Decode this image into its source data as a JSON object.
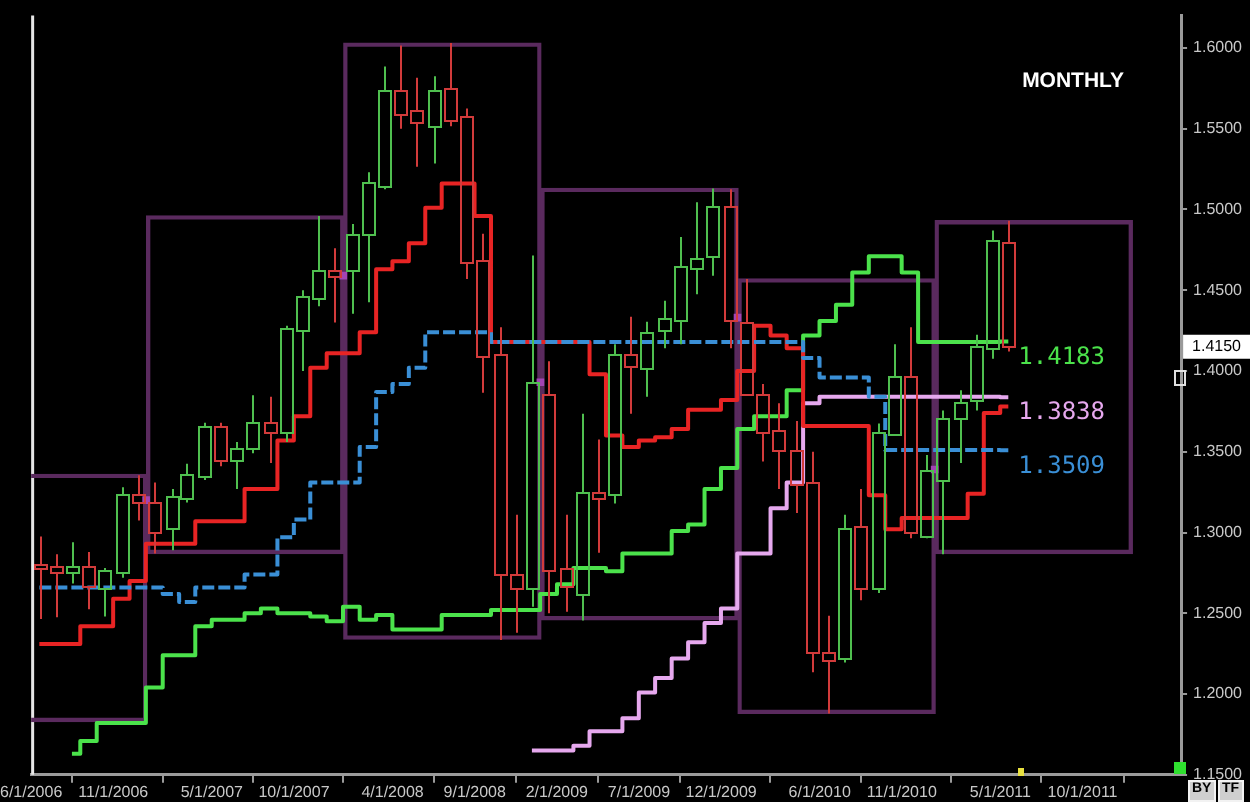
{
  "chart_data": {
    "type": "candlestick",
    "title": "MONTHLY",
    "x": [
      "2006-06-16",
      "2006-07-16",
      "2006-08-16",
      "2006-09-16",
      "2006-10-16",
      "2006-11-16",
      "2006-12-16",
      "2007-01-16",
      "2007-02-16",
      "2007-03-16",
      "2007-04-16",
      "2007-05-16",
      "2007-06-16",
      "2007-07-16",
      "2007-08-16",
      "2007-09-16",
      "2007-10-16",
      "2007-11-16",
      "2007-12-16",
      "2008-01-16",
      "2008-02-16",
      "2008-03-16",
      "2008-04-16",
      "2008-05-16",
      "2008-06-16",
      "2008-07-16",
      "2008-08-16",
      "2008-09-16",
      "2008-10-16",
      "2008-11-16",
      "2008-12-16",
      "2009-01-16",
      "2009-02-16",
      "2009-03-16",
      "2009-04-16",
      "2009-05-16",
      "2009-06-16",
      "2009-07-16",
      "2009-08-16",
      "2009-09-16",
      "2009-10-16",
      "2009-11-16",
      "2009-12-16",
      "2010-01-16",
      "2010-02-16",
      "2010-03-16",
      "2010-04-16",
      "2010-05-16",
      "2010-06-16",
      "2010-07-16",
      "2010-08-16",
      "2010-09-16",
      "2010-10-16",
      "2010-11-16",
      "2010-12-16",
      "2011-01-16",
      "2011-02-16",
      "2011-03-16",
      "2011-04-16",
      "2011-05-16"
    ],
    "series": [
      {
        "ohlc": [
          [
            1.28,
            1.2975,
            1.2465,
            1.278
          ],
          [
            1.279,
            1.2865,
            1.2475,
            1.2755
          ],
          [
            1.276,
            1.294,
            1.2685,
            1.2795
          ],
          [
            1.2795,
            1.288,
            1.2525,
            1.2665
          ],
          [
            1.2655,
            1.278,
            1.248,
            1.2765
          ],
          [
            1.2755,
            1.328,
            1.272,
            1.324
          ],
          [
            1.324,
            1.3355,
            1.3075,
            1.3195
          ],
          [
            1.3195,
            1.331,
            1.287,
            1.301
          ],
          [
            1.3025,
            1.327,
            1.289,
            1.322
          ],
          [
            1.322,
            1.3425,
            1.3185,
            1.3365
          ],
          [
            1.335,
            1.368,
            1.3325,
            1.3655
          ],
          [
            1.3655,
            1.368,
            1.341,
            1.344
          ],
          [
            1.345,
            1.356,
            1.327,
            1.352
          ],
          [
            1.352,
            1.385,
            1.349,
            1.368
          ],
          [
            1.368,
            1.384,
            1.343,
            1.362
          ],
          [
            1.362,
            1.428,
            1.356,
            1.4265
          ],
          [
            1.4245,
            1.45,
            1.4,
            1.446
          ],
          [
            1.446,
            1.496,
            1.44,
            1.463
          ],
          [
            1.462,
            1.476,
            1.43,
            1.458
          ],
          [
            1.463,
            1.491,
            1.4355,
            1.485
          ],
          [
            1.4845,
            1.523,
            1.4425,
            1.517
          ],
          [
            1.515,
            1.5885,
            1.5125,
            1.5745
          ],
          [
            1.5745,
            1.6015,
            1.55,
            1.5595
          ],
          [
            1.561,
            1.5815,
            1.5265,
            1.554
          ],
          [
            1.552,
            1.5825,
            1.5285,
            1.5745
          ],
          [
            1.5755,
            1.603,
            1.5515,
            1.556
          ],
          [
            1.558,
            1.5625,
            1.457,
            1.467
          ],
          [
            1.469,
            1.485,
            1.3865,
            1.41
          ],
          [
            1.4105,
            1.427,
            1.2335,
            1.2745
          ],
          [
            1.2745,
            1.311,
            1.238,
            1.2655
          ],
          [
            1.2655,
            1.4715,
            1.254,
            1.3935
          ],
          [
            1.386,
            1.406,
            1.25,
            1.2775
          ],
          [
            1.2775,
            1.311,
            1.251,
            1.266
          ],
          [
            1.262,
            1.3735,
            1.2455,
            1.325
          ],
          [
            1.3255,
            1.3575,
            1.2875,
            1.322
          ],
          [
            1.323,
            1.4165,
            1.318,
            1.41
          ],
          [
            1.41,
            1.4335,
            1.3735,
            1.402
          ],
          [
            1.402,
            1.4305,
            1.384,
            1.4245
          ],
          [
            1.425,
            1.4435,
            1.414,
            1.4325
          ],
          [
            1.4315,
            1.483,
            1.4165,
            1.465
          ],
          [
            1.4635,
            1.5045,
            1.4475,
            1.47
          ],
          [
            1.471,
            1.513,
            1.459,
            1.502
          ],
          [
            1.502,
            1.5125,
            1.414,
            1.4315
          ],
          [
            1.4305,
            1.457,
            1.3855,
            1.386
          ],
          [
            1.386,
            1.392,
            1.344,
            1.3625
          ],
          [
            1.3635,
            1.38,
            1.327,
            1.3515
          ],
          [
            1.3515,
            1.369,
            1.312,
            1.331
          ],
          [
            1.3315,
            1.35,
            1.2135,
            1.2265
          ],
          [
            1.2265,
            1.2485,
            1.188,
            1.2215
          ],
          [
            1.2215,
            1.311,
            1.2195,
            1.3025
          ],
          [
            1.304,
            1.327,
            1.258,
            1.266
          ],
          [
            1.266,
            1.3675,
            1.2625,
            1.3625
          ],
          [
            1.3615,
            1.4165,
            1.36,
            1.397
          ],
          [
            1.397,
            1.427,
            1.2965,
            1.3005
          ],
          [
            1.298,
            1.348,
            1.2965,
            1.339
          ],
          [
            1.333,
            1.3755,
            1.2865,
            1.3715
          ],
          [
            1.3705,
            1.388,
            1.343,
            1.381
          ],
          [
            1.382,
            1.4225,
            1.3755,
            1.415
          ],
          [
            1.414,
            1.487,
            1.4075,
            1.4805
          ],
          [
            1.48,
            1.493,
            1.412,
            1.415
          ]
        ],
        "colors": [
          "#d23b3b",
          "#d23b3b",
          "#4fbf4f",
          "#d23b3b",
          "#4fbf4f",
          "#4fbf4f",
          "#d23b3b",
          "#d23b3b",
          "#4fbf4f",
          "#4fbf4f",
          "#4fbf4f",
          "#d23b3b",
          "#4fbf4f",
          "#4fbf4f",
          "#d23b3b",
          "#4fbf4f",
          "#4fbf4f",
          "#4fbf4f",
          "#d23b3b",
          "#4fbf4f",
          "#4fbf4f",
          "#4fbf4f",
          "#d23b3b",
          "#d23b3b",
          "#4fbf4f",
          "#d23b3b",
          "#d23b3b",
          "#d23b3b",
          "#d23b3b",
          "#d23b3b",
          "#4fbf4f",
          "#d23b3b",
          "#d23b3b",
          "#4fbf4f",
          "#d23b3b",
          "#4fbf4f",
          "#d23b3b",
          "#4fbf4f",
          "#4fbf4f",
          "#4fbf4f",
          "#4fbf4f",
          "#4fbf4f",
          "#d23b3b",
          "#d23b3b",
          "#d23b3b",
          "#d23b3b",
          "#d23b3b",
          "#d23b3b",
          "#d23b3b",
          "#4fbf4f",
          "#d23b3b",
          "#4fbf4f",
          "#4fbf4f",
          "#d23b3b",
          "#4fbf4f",
          "#4fbf4f",
          "#4fbf4f",
          "#4fbf4f",
          "#4fbf4f",
          "#d23b3b"
        ]
      },
      {
        "type": "step",
        "color": "#3a8fd6",
        "line_style": "dashed",
        "values": [
          1.266,
          1.266,
          1.266,
          1.266,
          1.266,
          1.266,
          1.266,
          1.266,
          1.262,
          1.257,
          1.266,
          1.266,
          1.266,
          1.274,
          1.274,
          1.297,
          1.308,
          1.331,
          1.331,
          1.331,
          1.353,
          1.387,
          1.392,
          1.402,
          1.424,
          1.424,
          1.424,
          1.424,
          1.418,
          1.418,
          1.418,
          1.418,
          1.418,
          1.418,
          1.418,
          1.418,
          1.418,
          1.418,
          1.418,
          1.418,
          1.418,
          1.418,
          1.418,
          1.418,
          1.418,
          1.418,
          1.418,
          1.408,
          1.396,
          1.396,
          1.396,
          1.384,
          1.351,
          1.351,
          1.351,
          1.351,
          1.351,
          1.351,
          1.351,
          1.3509
        ],
        "value_labels": [
          null,
          null,
          null,
          null,
          null,
          null,
          null,
          null,
          null,
          null,
          null,
          null,
          null,
          null,
          null,
          null,
          null,
          null,
          null,
          null,
          null,
          null,
          null,
          null,
          null,
          null,
          null,
          null,
          null,
          null,
          null,
          null,
          null,
          null,
          null,
          null,
          null,
          null,
          null,
          null,
          null,
          null,
          null,
          null,
          null,
          null,
          null,
          null,
          null,
          null,
          null,
          null,
          null,
          null,
          null,
          null,
          null,
          null,
          null,
          "1.3509"
        ]
      },
      {
        "type": "step",
        "color": "#e82424",
        "values": [
          1.231,
          1.231,
          1.231,
          1.242,
          1.242,
          1.259,
          1.27,
          1.293,
          1.293,
          1.293,
          1.307,
          1.307,
          1.307,
          1.327,
          1.327,
          1.357,
          1.372,
          1.402,
          1.411,
          1.411,
          1.424,
          1.463,
          1.468,
          1.479,
          1.501,
          1.516,
          1.516,
          1.496,
          1.418,
          1.418,
          1.418,
          1.418,
          1.418,
          1.418,
          1.398,
          1.36,
          1.353,
          1.357,
          1.359,
          1.364,
          1.376,
          1.376,
          1.382,
          1.4,
          1.428,
          1.422,
          1.414,
          1.366,
          1.366,
          1.366,
          1.366,
          1.323,
          1.302,
          1.309,
          1.309,
          1.309,
          1.309,
          1.324,
          1.374,
          1.378
        ]
      },
      {
        "type": "step",
        "color": "#4be24b",
        "values": [
          null,
          null,
          1.163,
          1.171,
          1.182,
          1.182,
          1.182,
          1.204,
          1.224,
          1.224,
          1.242,
          1.246,
          1.246,
          1.25,
          1.253,
          1.25,
          1.25,
          1.248,
          1.245,
          1.254,
          1.246,
          1.249,
          1.24,
          1.24,
          1.24,
          1.249,
          1.249,
          1.249,
          1.252,
          1.252,
          1.252,
          1.262,
          1.268,
          1.278,
          1.278,
          1.276,
          1.287,
          1.287,
          1.287,
          1.301,
          1.305,
          1.327,
          1.34,
          1.364,
          1.372,
          1.372,
          1.388,
          1.422,
          1.431,
          1.441,
          1.461,
          1.471,
          1.471,
          1.461,
          1.418,
          1.418,
          1.418,
          1.418,
          1.418,
          1.4183
        ],
        "value_labels": [
          null,
          null,
          null,
          null,
          null,
          null,
          null,
          null,
          null,
          null,
          null,
          null,
          null,
          null,
          null,
          null,
          null,
          null,
          null,
          null,
          null,
          null,
          null,
          null,
          null,
          null,
          null,
          null,
          null,
          null,
          null,
          null,
          null,
          null,
          null,
          null,
          null,
          null,
          null,
          null,
          null,
          null,
          null,
          null,
          null,
          null,
          null,
          null,
          null,
          null,
          null,
          null,
          null,
          null,
          null,
          null,
          null,
          null,
          null,
          "1.4183"
        ]
      },
      {
        "type": "step",
        "color": "#e6a8ee",
        "values": [
          null,
          null,
          null,
          null,
          null,
          null,
          null,
          null,
          null,
          null,
          null,
          null,
          null,
          null,
          null,
          null,
          null,
          null,
          null,
          null,
          null,
          null,
          null,
          null,
          null,
          null,
          null,
          null,
          null,
          null,
          1.165,
          1.165,
          1.165,
          1.168,
          1.177,
          1.177,
          1.185,
          1.201,
          1.21,
          1.222,
          1.232,
          1.244,
          1.253,
          1.287,
          1.287,
          1.315,
          1.331,
          1.38,
          1.384,
          1.384,
          1.384,
          1.384,
          1.384,
          1.384,
          1.384,
          1.384,
          1.384,
          1.384,
          1.384,
          1.3838
        ],
        "value_labels": [
          null,
          null,
          null,
          null,
          null,
          null,
          null,
          null,
          null,
          null,
          null,
          null,
          null,
          null,
          null,
          null,
          null,
          null,
          null,
          null,
          null,
          null,
          null,
          null,
          null,
          null,
          null,
          null,
          null,
          null,
          null,
          null,
          null,
          null,
          null,
          null,
          null,
          null,
          null,
          null,
          null,
          null,
          null,
          null,
          null,
          null,
          null,
          null,
          null,
          null,
          null,
          null,
          null,
          null,
          null,
          null,
          null,
          null,
          null,
          "1.3838"
        ]
      },
      {
        "type": "scatter",
        "x": [
          "2007-01-01",
          "2008-01-01",
          "2009-01-01",
          "2010-01-01",
          "2011-01-01"
        ],
        "values": [
          1.32,
          1.459,
          1.393,
          1.433,
          1.339
        ],
        "color": "#a244b4",
        "marker": "square"
      },
      {
        "type": "bar",
        "x": [
          "2006-07-02",
          "2007-07-02",
          "2008-07-02",
          "2009-07-02",
          "2010-07-02",
          "2011-07-02"
        ],
        "base": [
          1.183,
          1.287,
          1.234,
          1.246,
          1.188,
          1.287
        ],
        "values": [
          0.153,
          0.209,
          0.369,
          0.267,
          0.269,
          0.206
        ],
        "color": "#5a2a5e"
      }
    ],
    "xlim": [
      "2006-06-01",
      "2012-04-01"
    ],
    "xticks": [
      {
        "value": "2006-06-01",
        "label": "6/1/2006"
      },
      {
        "value": "2006-11-01",
        "label": "11/1/2006"
      },
      {
        "value": "2007-05-01",
        "label": "5/1/2007"
      },
      {
        "value": "2007-10-01",
        "label": "10/1/2007"
      },
      {
        "value": "2008-04-01",
        "label": "4/1/2008"
      },
      {
        "value": "2008-09-01",
        "label": "9/1/2008"
      },
      {
        "value": "2009-02-01",
        "label": "2/1/2009"
      },
      {
        "value": "2009-07-01",
        "label": "7/1/2009"
      },
      {
        "value": "2009-12-01",
        "label": "12/1/2009"
      },
      {
        "value": "2010-06-01",
        "label": "6/1/2010"
      },
      {
        "value": "2010-11-01",
        "label": "11/1/2010"
      },
      {
        "value": "2011-05-01",
        "label": "5/1/2011"
      },
      {
        "value": "2011-10-01",
        "label": "10/1/2011"
      }
    ],
    "ylim": [
      1.15,
      1.62
    ],
    "yticks": [
      {
        "value": 1.15,
        "label": "1.1500"
      },
      {
        "value": 1.2,
        "label": "1.2000"
      },
      {
        "value": 1.25,
        "label": "1.2500"
      },
      {
        "value": 1.3,
        "label": "1.3000"
      },
      {
        "value": 1.35,
        "label": "1.3500"
      },
      {
        "value": 1.4,
        "label": "1.4000"
      },
      {
        "value": 1.45,
        "label": "1.4500"
      },
      {
        "value": 1.5,
        "label": "1.5000"
      },
      {
        "value": 1.55,
        "label": "1.5500"
      },
      {
        "value": 1.6,
        "label": "1.6000"
      }
    ],
    "annotations": [
      {
        "text": "1.4150",
        "y": 1.415
      },
      "BY",
      "TF"
    ],
    "grid": false,
    "legend": false
  }
}
